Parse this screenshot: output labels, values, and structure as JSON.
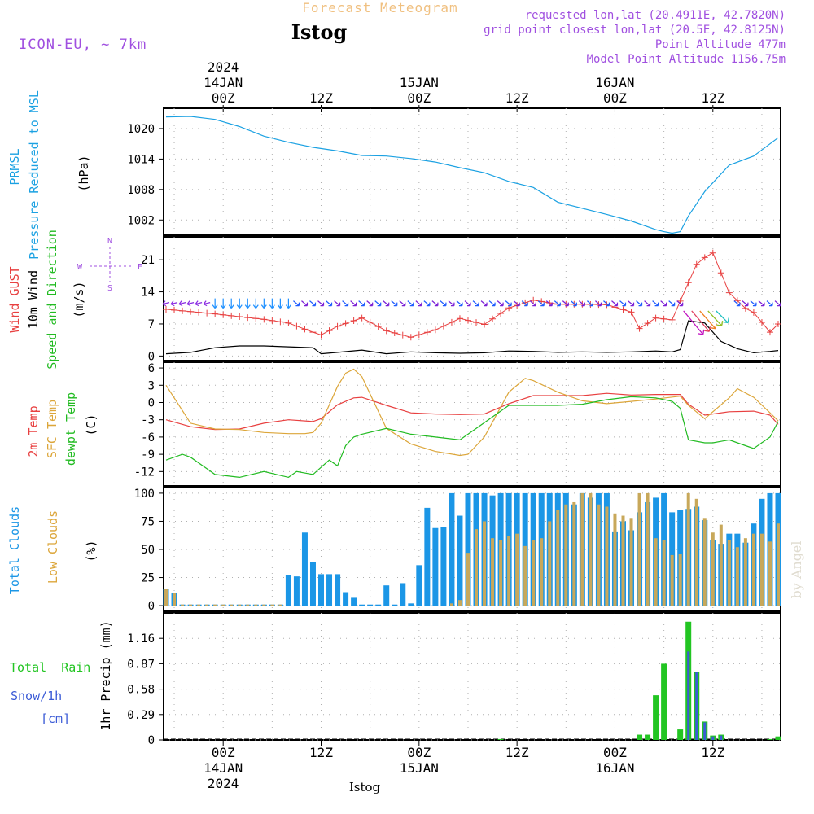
{
  "header": {
    "subtitle": "Forecast Meteogram",
    "station": "Istog",
    "model": "ICON-EU, ~ 7km",
    "requested": "requested lon,lat (20.4911E, 42.7820N)",
    "gridpoint": "grid point closest lon,lat (20.5E, 42.8125N)",
    "point_alt": "Point Altitude 477m",
    "model_alt": "Model Point Altitude 1156.75m",
    "footer": "Istog",
    "watermark": "by Angel"
  },
  "colors": {
    "pressure": "#1ba1e2",
    "gust": "#e84040",
    "wind": "#000000",
    "wind_dir": "#22bb22",
    "t2m": "#e84040",
    "sfc": "#dca63a",
    "dewpt": "#22bb22",
    "total_clouds": "#1b96e6",
    "low_clouds": "#c8a85a",
    "rain": "#22c522",
    "snow": "#3b5bd6",
    "header_orange": "#f0c080",
    "purple": "#a050e0"
  },
  "time_axis": {
    "top": [
      {
        "step": 7,
        "lines": [
          "2024",
          "14JAN",
          "00Z"
        ]
      },
      {
        "step": 19,
        "lines": [
          "12Z"
        ]
      },
      {
        "step": 31,
        "lines": [
          "15JAN",
          "00Z"
        ]
      },
      {
        "step": 43,
        "lines": [
          "12Z"
        ]
      },
      {
        "step": 55,
        "lines": [
          "16JAN",
          "00Z"
        ]
      },
      {
        "step": 67,
        "lines": [
          "12Z"
        ]
      }
    ],
    "bottom": [
      {
        "step": 7,
        "lines": [
          "00Z",
          "14JAN",
          "2024"
        ]
      },
      {
        "step": 19,
        "lines": [
          "12Z"
        ]
      },
      {
        "step": 31,
        "lines": [
          "00Z",
          "15JAN"
        ]
      },
      {
        "step": 43,
        "lines": [
          "12Z"
        ]
      },
      {
        "step": 55,
        "lines": [
          "00Z",
          "16JAN"
        ]
      },
      {
        "step": 67,
        "lines": [
          "12Z"
        ]
      }
    ]
  },
  "panels": {
    "pressure": {
      "labels": [
        "PRMSL",
        "Pressure Reduced to MSL",
        "(hPa)"
      ],
      "ticks": [
        "1020",
        "1014",
        "1008",
        "1002"
      ]
    },
    "wind": {
      "labels": [
        "Wind GUST",
        "10m Wind",
        "Speed and Direction",
        "(m/s)"
      ],
      "ticks": [
        "21",
        "14",
        "7",
        "0"
      ],
      "compass": {
        "n": "N",
        "s": "S",
        "w": "W",
        "e": "E"
      }
    },
    "temp": {
      "labels": [
        "2m Temp",
        "SFC Temp",
        "dewpt Temp",
        "(C)"
      ],
      "ticks": [
        "6",
        "3",
        "0",
        "-3",
        "-6",
        "-9",
        "-12"
      ]
    },
    "clouds": {
      "labels": [
        "Total Clouds",
        "Low Clouds",
        "(%)"
      ],
      "ticks": [
        "100",
        "75",
        "50",
        "25",
        "0"
      ]
    },
    "precip": {
      "labels": [
        "Total  Rain",
        "Snow/1h",
        "[cm]",
        "1hr Precip (mm)"
      ],
      "ticks": [
        "1.16",
        "0.87",
        "0.58",
        "0.29",
        "0"
      ]
    }
  },
  "chart_data": [
    {
      "type": "line",
      "title": "PRMSL Pressure Reduced to MSL",
      "x_unit": "forecast hour (1h steps)",
      "ylabel": "hPa",
      "ylim": [
        999,
        1024
      ],
      "series": [
        {
          "name": "PRMSL",
          "x": [
            0,
            3,
            6,
            9,
            12,
            15,
            18,
            21,
            24,
            27,
            30,
            33,
            36,
            39,
            42,
            45,
            48,
            51,
            54,
            57,
            60,
            61,
            62,
            63,
            64,
            66,
            69,
            72,
            73,
            75
          ],
          "values": [
            1022.3,
            1022.4,
            1021.8,
            1020.4,
            1018.5,
            1017.3,
            1016.3,
            1015.6,
            1014.7,
            1014.6,
            1014.1,
            1013.4,
            1012.3,
            1011.3,
            1009.6,
            1008.4,
            1005.5,
            1004.3,
            1003.1,
            1001.8,
            1000.1,
            999.7,
            999.4,
            999.7,
            1002.8,
            1007.6,
            1012.8,
            1014.6,
            1015.8,
            1018.2
          ]
        }
      ],
      "grid": true
    },
    {
      "type": "line",
      "title": "Wind GUST / 10m Wind Speed and Direction",
      "ylabel": "m/s",
      "ylim": [
        -1,
        26
      ],
      "series": [
        {
          "name": "Wind GUST",
          "x": [
            0,
            3,
            6,
            9,
            12,
            15,
            18,
            19,
            21,
            24,
            27,
            30,
            33,
            36,
            39,
            42,
            45,
            48,
            51,
            54,
            57,
            58,
            60,
            62,
            63,
            65,
            66,
            67,
            69,
            71,
            72,
            74,
            75
          ],
          "values": [
            10.2,
            9.7,
            9.2,
            8.6,
            8.0,
            7.2,
            5.2,
            4.6,
            6.5,
            8.3,
            5.5,
            4.1,
            5.7,
            8.2,
            6.9,
            10.5,
            12.2,
            11.3,
            11.3,
            11.2,
            9.6,
            6.0,
            8.3,
            7.9,
            12.0,
            20.0,
            21.5,
            22.5,
            13.8,
            10.4,
            9.5,
            5.2,
            7.0
          ]
        },
        {
          "name": "10m Wind",
          "x": [
            0,
            3,
            6,
            9,
            12,
            15,
            18,
            19,
            21,
            24,
            27,
            30,
            33,
            36,
            39,
            42,
            45,
            48,
            51,
            54,
            57,
            60,
            62,
            63,
            64,
            66,
            68,
            70,
            72,
            74,
            75
          ],
          "values": [
            0.5,
            0.8,
            1.8,
            2.2,
            2.2,
            2.0,
            1.8,
            0.5,
            0.8,
            1.3,
            0.5,
            0.9,
            0.7,
            0.6,
            0.7,
            1.1,
            1.0,
            0.8,
            0.9,
            0.8,
            0.9,
            1.1,
            0.9,
            1.4,
            7.7,
            7.2,
            3.2,
            1.6,
            0.7,
            1.0,
            1.2
          ]
        }
      ],
      "direction_arrows": {
        "from_step": 0,
        "to_step": 75,
        "y": 11.5
      },
      "grid": true
    },
    {
      "type": "line",
      "title": "2m Temp / SFC Temp / dewpt Temp",
      "ylabel": "C",
      "ylim": [
        -14.5,
        7
      ],
      "series": [
        {
          "name": "2m Temp",
          "x": [
            0,
            3,
            6,
            9,
            12,
            15,
            18,
            19,
            21,
            23,
            24,
            27,
            30,
            33,
            36,
            39,
            42,
            45,
            48,
            51,
            54,
            57,
            60,
            63,
            64,
            66,
            69,
            72,
            74,
            75
          ],
          "values": [
            -3.0,
            -4.2,
            -4.7,
            -4.6,
            -3.6,
            -3.0,
            -3.3,
            -2.8,
            -0.4,
            0.8,
            0.9,
            -0.5,
            -1.8,
            -2.0,
            -2.1,
            -2.0,
            -0.2,
            1.2,
            1.2,
            1.2,
            1.6,
            1.3,
            1.4,
            1.4,
            -0.3,
            -2.2,
            -1.6,
            -1.5,
            -2.2,
            -3.8
          ]
        },
        {
          "name": "SFC Temp",
          "x": [
            0,
            3,
            6,
            9,
            12,
            15,
            17,
            18,
            19,
            21,
            22,
            23,
            24,
            27,
            30,
            33,
            36,
            37,
            39,
            42,
            44,
            45,
            48,
            51,
            54,
            57,
            60,
            63,
            64,
            66,
            69,
            70,
            72,
            74,
            75
          ],
          "values": [
            3.0,
            -3.6,
            -4.6,
            -4.7,
            -5.2,
            -5.4,
            -5.4,
            -5.2,
            -3.6,
            2.8,
            5.1,
            5.8,
            4.5,
            -4.5,
            -7.2,
            -8.5,
            -9.2,
            -9.0,
            -6.0,
            1.8,
            4.2,
            3.8,
            1.8,
            0.3,
            -0.2,
            0.2,
            0.6,
            1.1,
            -0.5,
            -2.8,
            0.8,
            2.4,
            0.9,
            -1.8,
            -3.2
          ]
        },
        {
          "name": "dewpt Temp",
          "x": [
            0,
            2,
            3,
            5,
            6,
            9,
            12,
            15,
            16,
            18,
            20,
            21,
            22,
            23,
            24,
            27,
            30,
            33,
            36,
            39,
            42,
            45,
            48,
            51,
            54,
            57,
            60,
            62,
            63,
            64,
            66,
            67,
            69,
            71,
            72,
            74,
            75
          ],
          "values": [
            -10.0,
            -9.0,
            -9.5,
            -11.5,
            -12.5,
            -13.0,
            -12.0,
            -13.0,
            -12.0,
            -12.5,
            -10.0,
            -11.0,
            -7.5,
            -6.0,
            -5.5,
            -4.5,
            -5.5,
            -6.0,
            -6.5,
            -3.5,
            -0.5,
            -0.5,
            -0.5,
            -0.3,
            0.5,
            1.0,
            0.8,
            0.2,
            -1.0,
            -6.5,
            -7.0,
            -7.0,
            -6.5,
            -7.5,
            -8.0,
            -6.0,
            -3.3
          ]
        }
      ],
      "grid": true
    },
    {
      "type": "bar",
      "title": "Total Clouds / Low Clouds",
      "ylabel": "%",
      "ylim": [
        -5,
        105
      ],
      "series": [
        {
          "name": "Total Clouds",
          "values": [
            15,
            11,
            1,
            1,
            1,
            1,
            1,
            1,
            1,
            1,
            1,
            1,
            1,
            1,
            1,
            27,
            26,
            65,
            39,
            28,
            28,
            28,
            12,
            7,
            1,
            1,
            1,
            18,
            1,
            20,
            2,
            36,
            87,
            69,
            70,
            100,
            80,
            100,
            100,
            100,
            98,
            100,
            100,
            100,
            100,
            100,
            100,
            100,
            100,
            100,
            90,
            100,
            96,
            100,
            100,
            66,
            75,
            67,
            83,
            92,
            96,
            100,
            83,
            85,
            86,
            88,
            76,
            58,
            55,
            64,
            64,
            56,
            73,
            95,
            100,
            100
          ]
        },
        {
          "name": "Low Clouds",
          "values": [
            15,
            11,
            1,
            1,
            1,
            1,
            1,
            1,
            1,
            1,
            1,
            1,
            1,
            1,
            1,
            0,
            0,
            0,
            0,
            0,
            0,
            0,
            0,
            0,
            0,
            0,
            0,
            0,
            0,
            0,
            0,
            0,
            0,
            0,
            0,
            2,
            5,
            47,
            68,
            75,
            60,
            58,
            62,
            64,
            53,
            58,
            60,
            75,
            85,
            90,
            92,
            100,
            100,
            90,
            88,
            82,
            80,
            78,
            100,
            100,
            60,
            58,
            45,
            46,
            100,
            95,
            78,
            65,
            72,
            58,
            52,
            60,
            64,
            64,
            57,
            73
          ]
        }
      ],
      "grid": true
    },
    {
      "type": "bar",
      "title": "1hr Precip",
      "ylabel": "1hr Precip (mm)",
      "ylim": [
        0,
        1.45
      ],
      "series": [
        {
          "name": "Total Rain",
          "values": {
            "41": 0.01,
            "58": 0.06,
            "59": 0.06,
            "60": 0.51,
            "61": 0.87,
            "63": 0.12,
            "64": 1.35,
            "65": 0.78,
            "66": 0.21,
            "67": 0.05,
            "68": 0.06,
            "74": 0.01,
            "75": 0.04
          }
        },
        {
          "name": "Snow/1h",
          "values": {
            "64": 1.01,
            "65": 0.78,
            "66": 0.2,
            "67": 0.04,
            "68": 0.05
          }
        }
      ],
      "grid": true
    }
  ]
}
